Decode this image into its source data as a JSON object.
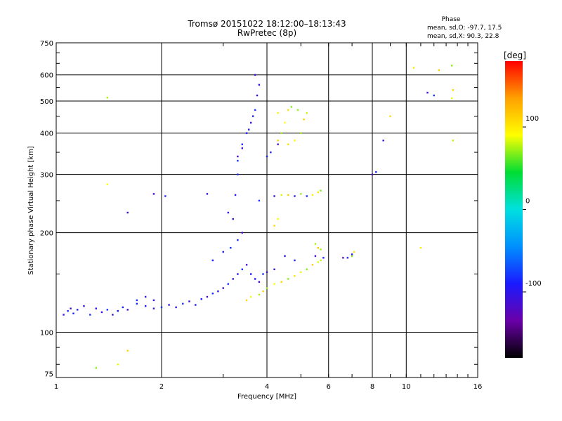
{
  "chart_data": {
    "type": "scatter",
    "title": "Tromsø 20151022 18:12:00–18:13:43",
    "subtitle": "RwPretec (8p)",
    "xlabel": "Frequency [MHz]",
    "ylabel": "Stationary phase Virtual Height [km]",
    "x_scale": "log",
    "y_scale": "log",
    "xlim": [
      1,
      16
    ],
    "ylim": [
      73,
      750
    ],
    "x_ticks": [
      1,
      2,
      4,
      6,
      8,
      10,
      16
    ],
    "x_tick_labels": [
      "1",
      "2",
      "4",
      "6",
      "8",
      "10",
      "16"
    ],
    "y_ticks": [
      75,
      100,
      200,
      300,
      400,
      500,
      600,
      750
    ],
    "y_tick_labels": [
      "75",
      "100",
      "200",
      "300",
      "400",
      "500",
      "600",
      "750"
    ],
    "grid": true,
    "stats_header": "Phase",
    "stats_lines": [
      "mean, sd,O: -97.7, 17.5",
      "mean, sd,X: 90.3, 22.8"
    ],
    "colorbar": {
      "label": "[deg]",
      "range": [
        -180,
        180
      ],
      "ticks": [
        100,
        0,
        -100
      ],
      "tick_labels": [
        "100",
        "0",
        "-100"
      ],
      "colormap": [
        "#000000",
        "#6a00a8",
        "#1a1aff",
        "#0090ff",
        "#00e0e0",
        "#00dd33",
        "#ffff00",
        "#ffa000",
        "#ff0000"
      ]
    },
    "series": [
      {
        "values": [
          [
            1.05,
            113
          ],
          [
            1.08,
            116
          ],
          [
            1.1,
            118
          ],
          [
            1.12,
            114
          ],
          [
            1.15,
            117
          ],
          [
            1.2,
            120
          ],
          [
            1.25,
            113
          ],
          [
            1.3,
            118
          ],
          [
            1.35,
            115
          ],
          [
            1.4,
            117
          ],
          [
            1.45,
            113
          ],
          [
            1.5,
            116
          ],
          [
            1.55,
            119
          ],
          [
            1.6,
            117
          ],
          [
            1.7,
            122
          ],
          [
            1.8,
            120
          ],
          [
            1.9,
            118
          ],
          [
            2.0,
            119
          ],
          [
            2.1,
            121
          ],
          [
            2.2,
            119
          ],
          [
            2.3,
            122
          ],
          [
            2.4,
            124
          ],
          [
            2.5,
            121
          ],
          [
            2.6,
            126
          ],
          [
            2.7,
            128
          ],
          [
            2.8,
            131
          ],
          [
            2.9,
            133
          ],
          [
            3.0,
            136
          ],
          [
            3.1,
            140
          ],
          [
            3.2,
            145
          ],
          [
            3.3,
            150
          ],
          [
            3.4,
            155
          ],
          [
            3.5,
            160
          ],
          [
            3.6,
            150
          ],
          [
            3.7,
            145
          ],
          [
            3.8,
            142
          ],
          [
            3.9,
            150
          ],
          [
            4.0,
            152
          ],
          [
            4.2,
            155
          ],
          [
            3.15,
            180
          ],
          [
            3.2,
            220
          ],
          [
            3.25,
            260
          ],
          [
            3.3,
            300
          ],
          [
            3.3,
            340
          ],
          [
            3.4,
            370
          ],
          [
            3.5,
            400
          ],
          [
            3.6,
            430
          ],
          [
            3.7,
            470
          ],
          [
            3.75,
            520
          ],
          [
            3.8,
            560
          ],
          [
            3.3,
            330
          ],
          [
            3.4,
            360
          ],
          [
            3.55,
            410
          ],
          [
            3.65,
            450
          ],
          [
            3.7,
            600
          ],
          [
            4.0,
            340
          ],
          [
            4.1,
            350
          ],
          [
            4.3,
            370
          ],
          [
            1.7,
            125
          ],
          [
            1.8,
            128
          ],
          [
            1.9,
            125
          ],
          [
            3.3,
            190
          ],
          [
            3.4,
            200
          ],
          [
            3.0,
            175
          ],
          [
            2.8,
            165
          ],
          [
            1.9,
            262
          ],
          [
            2.05,
            258
          ],
          [
            2.7,
            262
          ],
          [
            3.1,
            230
          ],
          [
            3.8,
            250
          ],
          [
            4.2,
            258
          ],
          [
            4.8,
            258
          ],
          [
            5.2,
            258
          ],
          [
            6.6,
            168
          ],
          [
            6.8,
            168
          ],
          [
            7.0,
            172
          ],
          [
            8.0,
            300
          ],
          [
            8.2,
            305
          ],
          [
            8.6,
            380
          ],
          [
            11.5,
            530
          ],
          [
            12,
            520
          ],
          [
            1.6,
            230
          ],
          [
            4.5,
            170
          ],
          [
            4.8,
            165
          ],
          [
            5.5,
            170
          ],
          [
            5.8,
            168
          ]
        ]
      },
      {
        "values": [
          [
            3.5,
            125
          ],
          [
            3.6,
            128
          ],
          [
            3.8,
            130
          ],
          [
            3.9,
            133
          ],
          [
            4.0,
            136
          ],
          [
            4.2,
            140
          ],
          [
            4.4,
            142
          ],
          [
            4.6,
            145
          ],
          [
            4.8,
            148
          ],
          [
            5.0,
            152
          ],
          [
            5.2,
            155
          ],
          [
            5.4,
            160
          ],
          [
            5.6,
            163
          ],
          [
            5.7,
            165
          ],
          [
            4.3,
            380
          ],
          [
            4.4,
            400
          ],
          [
            4.5,
            430
          ],
          [
            4.6,
            470
          ],
          [
            4.7,
            480
          ],
          [
            4.6,
            370
          ],
          [
            4.8,
            380
          ],
          [
            5.0,
            400
          ],
          [
            5.1,
            440
          ],
          [
            5.2,
            460
          ],
          [
            4.4,
            260
          ],
          [
            4.6,
            260
          ],
          [
            5.0,
            262
          ],
          [
            5.4,
            260
          ],
          [
            5.6,
            265
          ],
          [
            5.7,
            268
          ],
          [
            4.2,
            210
          ],
          [
            4.3,
            220
          ],
          [
            5.5,
            185
          ],
          [
            5.6,
            180
          ],
          [
            5.7,
            178
          ],
          [
            1.5,
            80
          ],
          [
            1.6,
            88
          ],
          [
            1.3,
            78
          ],
          [
            11,
            180
          ],
          [
            10.5,
            630
          ],
          [
            13.5,
            640
          ],
          [
            13.6,
            540
          ],
          [
            13.5,
            510
          ],
          [
            13.6,
            380
          ],
          [
            12.4,
            620
          ],
          [
            1.4,
            512
          ],
          [
            1.4,
            280
          ],
          [
            9,
            450
          ],
          [
            7.0,
            170
          ],
          [
            7.1,
            175
          ],
          [
            4.3,
            460
          ],
          [
            4.9,
            470
          ]
        ]
      }
    ]
  }
}
